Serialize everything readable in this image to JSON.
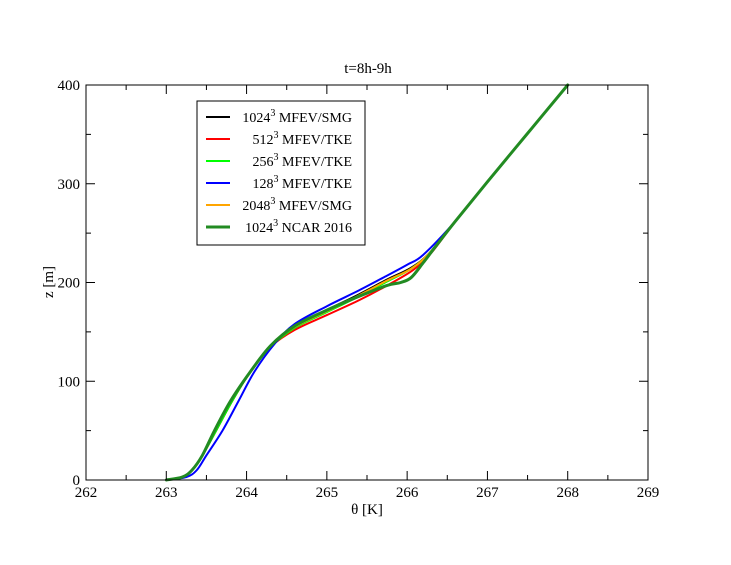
{
  "chart_data": {
    "type": "line",
    "title": "t=8h-9h",
    "xlabel": "θ [K]",
    "ylabel": "z [m]",
    "xlim": [
      262,
      269
    ],
    "ylim": [
      0,
      400
    ],
    "xticks": [
      "262",
      "263",
      "264",
      "265",
      "266",
      "267",
      "268",
      "269"
    ],
    "yticks": [
      "0",
      "100",
      "200",
      "300",
      "400"
    ],
    "grid": false,
    "legend_position": "top-left",
    "series": [
      {
        "name": "1024",
        "name_sup": "3",
        "name_suffix": " MFEV/SMG",
        "color": "#000000",
        "x": [
          263.0,
          263.2,
          263.32,
          263.45,
          263.62,
          263.82,
          264.05,
          264.3,
          264.6,
          265.0,
          265.4,
          265.75,
          266.05,
          266.28,
          266.6,
          267.0,
          267.5,
          268.0
        ],
        "y": [
          0,
          3,
          10,
          25,
          50,
          80,
          110,
          135,
          155,
          172,
          188,
          203,
          215,
          230,
          262,
          302,
          351,
          400
        ]
      },
      {
        "name": "512",
        "name_sup": "3",
        "name_suffix": " MFEV/TKE",
        "color": "#ff0000",
        "x": [
          263.0,
          263.2,
          263.32,
          263.45,
          263.62,
          263.82,
          264.05,
          264.3,
          264.6,
          265.0,
          265.4,
          265.75,
          266.08,
          266.3,
          266.6,
          267.0,
          267.5,
          268.0
        ],
        "y": [
          0,
          3,
          10,
          25,
          50,
          80,
          110,
          135,
          152,
          167,
          182,
          197,
          213,
          230,
          262,
          302,
          351,
          400
        ]
      },
      {
        "name": "256",
        "name_sup": "3",
        "name_suffix": " MFEV/TKE",
        "color": "#00ff00",
        "x": [
          263.0,
          263.2,
          263.32,
          263.45,
          263.62,
          263.82,
          264.05,
          264.3,
          264.6,
          265.0,
          265.4,
          265.75,
          266.05,
          266.28,
          266.6,
          267.0,
          267.5,
          268.0
        ],
        "y": [
          0,
          3,
          10,
          25,
          50,
          80,
          110,
          135,
          154,
          170,
          186,
          201,
          214,
          230,
          262,
          302,
          351,
          400
        ]
      },
      {
        "name": "128",
        "name_sup": "3",
        "name_suffix": " MFEV/TKE",
        "color": "#0000ff",
        "x": [
          263.0,
          263.25,
          263.38,
          263.5,
          263.7,
          263.9,
          264.1,
          264.35,
          264.6,
          265.0,
          265.4,
          265.75,
          266.0,
          266.2,
          266.6,
          267.0,
          267.5,
          268.0
        ],
        "y": [
          0,
          3,
          10,
          25,
          50,
          80,
          110,
          138,
          158,
          176,
          192,
          207,
          218,
          228,
          262,
          302,
          351,
          400
        ]
      },
      {
        "name": "2048",
        "name_sup": "3",
        "name_suffix": " MFEV/SMG",
        "color": "#ffa500",
        "x": [
          263.0,
          263.2,
          263.32,
          263.45,
          263.6,
          263.8,
          264.05,
          264.3,
          264.6,
          265.0,
          265.4,
          265.75,
          266.05,
          266.28,
          266.6,
          267.0,
          267.5,
          268.0
        ],
        "y": [
          0,
          3,
          10,
          25,
          50,
          80,
          110,
          136,
          155,
          171,
          187,
          202,
          214,
          230,
          262,
          302,
          351,
          400
        ]
      },
      {
        "name": "1024",
        "name_sup": "3",
        "name_suffix": " NCAR 2016",
        "color": "#228b22",
        "x": [
          263.0,
          263.2,
          263.32,
          263.45,
          263.6,
          263.8,
          264.05,
          264.3,
          264.6,
          265.0,
          265.4,
          265.75,
          265.92,
          266.05,
          266.2,
          266.35,
          266.6,
          267.0,
          267.5,
          268.0
        ],
        "y": [
          0,
          3,
          10,
          25,
          50,
          80,
          110,
          136,
          156,
          172,
          186,
          197,
          200,
          205,
          220,
          236,
          262,
          302,
          351,
          400
        ]
      }
    ]
  }
}
